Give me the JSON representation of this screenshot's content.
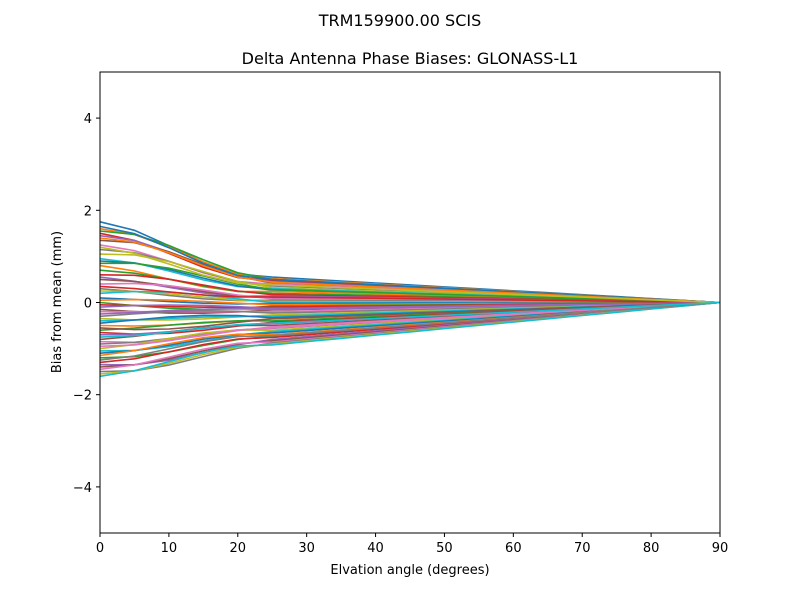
{
  "chart_data": {
    "type": "line",
    "suptitle": "TRM159900.00     SCIS",
    "title": "Delta Antenna Phase Biases: GLONASS-L1",
    "xlabel": "Elvation angle (degrees)",
    "ylabel": "Bias from mean (mm)",
    "xlim": [
      0,
      90
    ],
    "ylim": [
      -5,
      5
    ],
    "x": [
      0,
      5,
      10,
      15,
      20,
      25,
      30,
      35,
      40,
      45,
      50,
      55,
      60,
      65,
      70,
      75,
      80,
      85,
      90
    ],
    "xticks": [
      0,
      10,
      20,
      30,
      40,
      50,
      60,
      70,
      80,
      90
    ],
    "yticks": [
      -4,
      -2,
      0,
      2,
      4
    ],
    "ytick_labels": [
      "−4",
      "−2",
      "0",
      "2",
      "4"
    ],
    "grid": false,
    "series_count": 60,
    "start_values": [
      1.75,
      1.6,
      1.55,
      1.5,
      1.45,
      1.35,
      1.25,
      1.15,
      1.05,
      0.95,
      0.9,
      0.8,
      0.7,
      0.6,
      0.55,
      0.5,
      0.4,
      0.3,
      0.25,
      0.2,
      0.1,
      0.05,
      0.0,
      -0.05,
      -0.1,
      -0.15,
      -0.2,
      -0.3,
      -0.35,
      -0.4,
      -0.45,
      -0.5,
      -0.6,
      -0.65,
      -0.7,
      -0.8,
      -0.85,
      -0.9,
      -1.0,
      -1.05,
      -1.1,
      -1.15,
      -1.2,
      -1.3,
      -1.35,
      -1.4,
      -1.45,
      -1.5,
      -1.55,
      -1.6,
      1.65,
      1.4,
      0.85,
      0.35,
      -0.25,
      -0.55,
      -0.95,
      -1.25,
      1.2,
      -0.75
    ],
    "mid_values": [
      0.55,
      0.52,
      0.5,
      0.48,
      0.45,
      0.42,
      0.4,
      0.36,
      0.32,
      0.3,
      0.27,
      0.24,
      0.2,
      0.17,
      0.14,
      0.1,
      0.08,
      0.05,
      0.02,
      0.0,
      -0.02,
      -0.05,
      -0.08,
      -0.1,
      -0.13,
      -0.16,
      -0.2,
      -0.23,
      -0.27,
      -0.3,
      -0.33,
      -0.36,
      -0.4,
      -0.43,
      -0.46,
      -0.5,
      -0.53,
      -0.56,
      -0.6,
      -0.63,
      -0.66,
      -0.7,
      -0.73,
      -0.76,
      -0.8,
      -0.83,
      -0.86,
      -0.88,
      -0.9,
      -0.92,
      0.5,
      0.44,
      0.28,
      0.12,
      -0.15,
      -0.35,
      -0.55,
      -0.72,
      0.38,
      -0.45
    ],
    "end_value": 0.0,
    "colors": [
      "#1f77b4",
      "#ff7f0e",
      "#2ca02c",
      "#d62728",
      "#9467bd",
      "#8c564b",
      "#e377c2",
      "#7f7f7f",
      "#bcbd22",
      "#17becf"
    ]
  }
}
